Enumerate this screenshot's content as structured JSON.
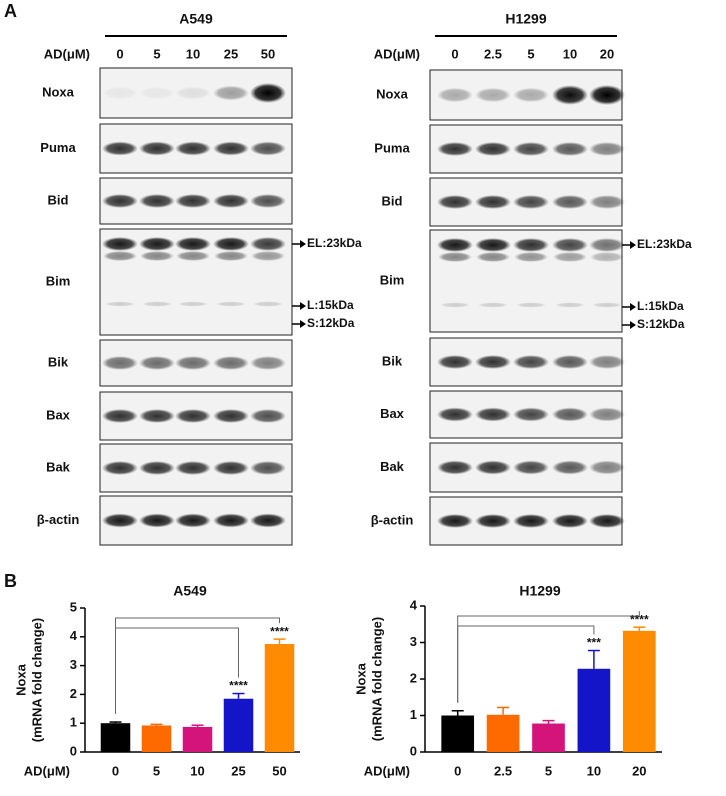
{
  "panel_labels": [
    "A",
    "B"
  ],
  "blots": [
    {
      "cell_line": "A549",
      "axis_label": "AD(μM)",
      "doses": [
        "0",
        "5",
        "10",
        "25",
        "50"
      ],
      "rows": [
        "Noxa",
        "Puma",
        "Bid",
        "Bim",
        "Bik",
        "Bax",
        "Bak",
        "β-actin"
      ],
      "bim_markers": [
        "EL:23kDa",
        "L:15kDa",
        "S:12kDa"
      ]
    },
    {
      "cell_line": "H1299",
      "axis_label": "AD(μM)",
      "doses": [
        "0",
        "2.5",
        "5",
        "10",
        "20"
      ],
      "rows": [
        "Noxa",
        "Puma",
        "Bid",
        "Bim",
        "Bik",
        "Bax",
        "Bak",
        "β-actin"
      ],
      "bim_markers": [
        "EL:23kDa",
        "L:15kDa",
        "S:12kDa"
      ]
    }
  ],
  "chart_data": [
    {
      "type": "bar",
      "title": "A549",
      "y_label_lines": [
        "Noxa",
        "(mRNA fold change)"
      ],
      "x_label": "AD(μM)",
      "categories": [
        "0",
        "5",
        "10",
        "25",
        "50"
      ],
      "values": [
        1.0,
        0.92,
        0.87,
        1.85,
        3.75
      ],
      "errors": [
        0.04,
        0.04,
        0.06,
        0.18,
        0.17
      ],
      "colors": [
        "#000000",
        "#ff6a00",
        "#d4147a",
        "#1414c8",
        "#ff8c00"
      ],
      "significance": [
        {
          "index": 3,
          "label": "****"
        },
        {
          "index": 4,
          "label": "****"
        }
      ],
      "ylim": [
        0,
        5
      ],
      "yticks": [
        0,
        1,
        2,
        3,
        4,
        5
      ]
    },
    {
      "type": "bar",
      "title": "H1299",
      "y_label_lines": [
        "Noxa",
        "(mRNA fold change)"
      ],
      "x_label": "AD(μM)",
      "categories": [
        "0",
        "2.5",
        "5",
        "10",
        "20"
      ],
      "values": [
        1.0,
        1.02,
        0.78,
        2.28,
        3.32
      ],
      "errors": [
        0.13,
        0.2,
        0.08,
        0.5,
        0.1
      ],
      "colors": [
        "#000000",
        "#ff6a00",
        "#d4147a",
        "#1414c8",
        "#ff8c00"
      ],
      "significance": [
        {
          "index": 3,
          "label": "***"
        },
        {
          "index": 4,
          "label": "****"
        }
      ],
      "ylim": [
        0,
        4
      ],
      "yticks": [
        0,
        1,
        2,
        3,
        4
      ]
    }
  ]
}
